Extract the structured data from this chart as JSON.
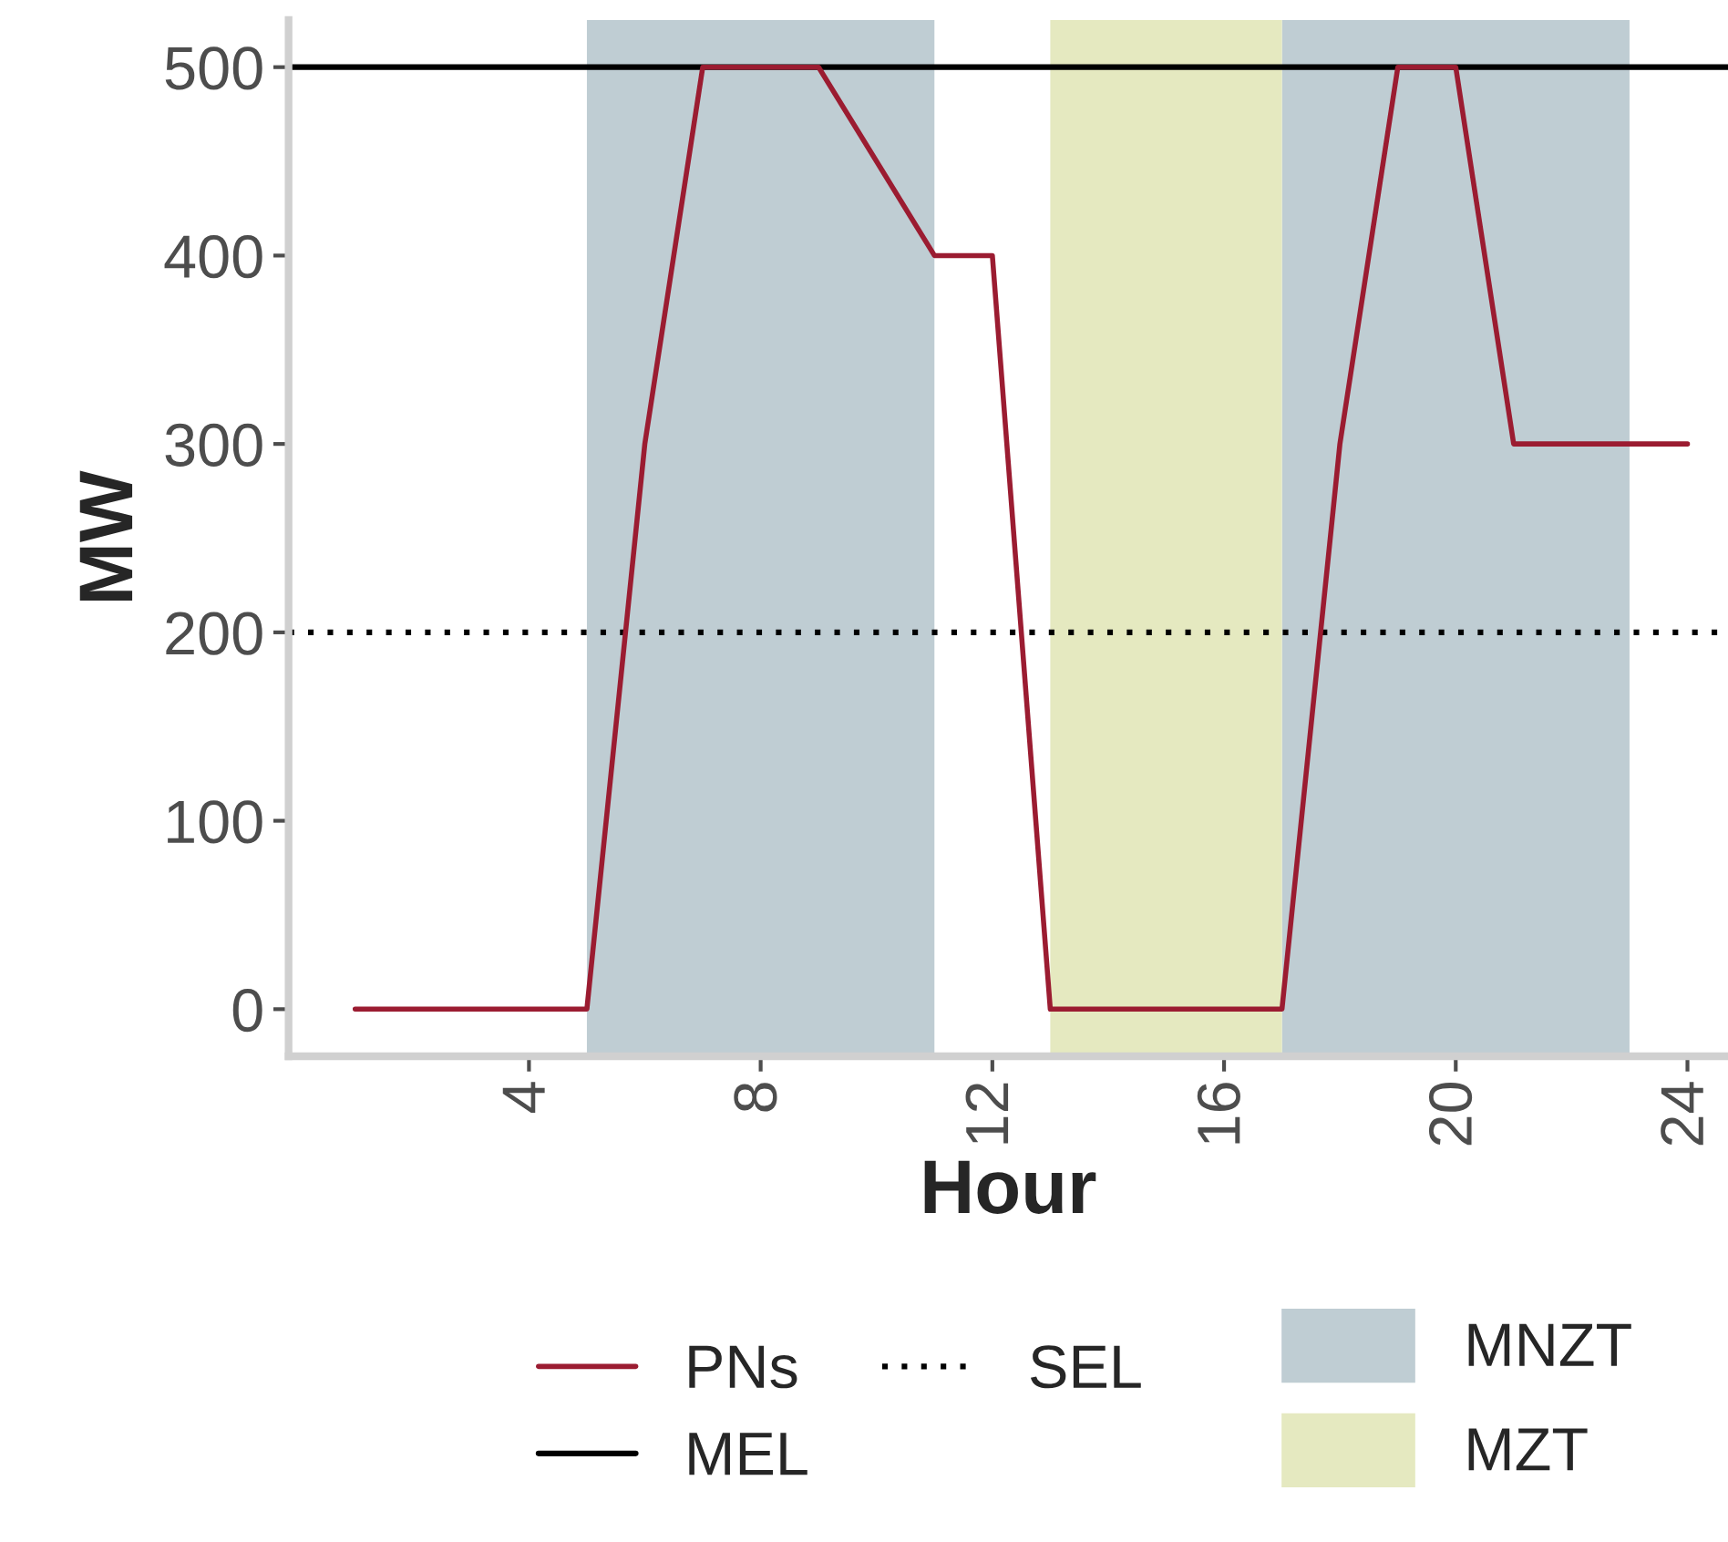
{
  "chart_data": {
    "type": "line",
    "xlabel": "Hour",
    "ylabel": "MW",
    "x": [
      1,
      2,
      3,
      4,
      5,
      6,
      7,
      8,
      9,
      10,
      11,
      12,
      13,
      14,
      15,
      16,
      17,
      18,
      19,
      20,
      21,
      22,
      23,
      24
    ],
    "series": [
      {
        "name": "PNs",
        "color": "#9b1c31",
        "values": [
          0,
          0,
          0,
          0,
          0,
          300,
          500,
          500,
          500,
          450,
          400,
          400,
          0,
          0,
          0,
          0,
          0,
          300,
          500,
          500,
          300,
          300,
          300,
          300
        ]
      }
    ],
    "xlim": [
      -0.15,
      24.7
    ],
    "xticks": [
      4,
      8,
      12,
      16,
      20,
      24
    ],
    "ylim": [
      -25,
      525
    ],
    "yticks": [
      0,
      100,
      200,
      300,
      400,
      500
    ],
    "ref_lines": [
      {
        "axis": "y",
        "value": 500,
        "label": "MEL",
        "color": "#000000",
        "line_style": "solid"
      },
      {
        "axis": "y",
        "value": 200,
        "label": "SEL",
        "color": "#000000",
        "line_style": "dotted"
      }
    ],
    "bands": [
      {
        "axis": "x",
        "from": 5,
        "to": 11,
        "label": "MNZT",
        "color": "#bfcdd3"
      },
      {
        "axis": "x",
        "from": 17,
        "to": 23,
        "color": "#bfcdd3"
      },
      {
        "axis": "x",
        "from": 13,
        "to": 17,
        "label": "MZT",
        "color": "#e5e9c0"
      }
    ],
    "legend": "bottom",
    "grid": false,
    "marker": "none",
    "line_style": "solid"
  }
}
